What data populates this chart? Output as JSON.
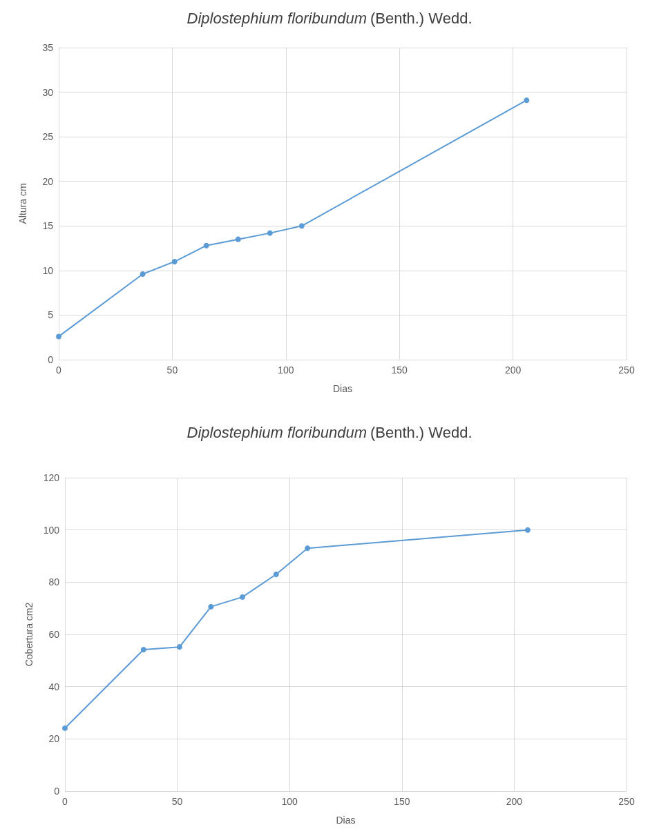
{
  "chart_data": [
    {
      "type": "line",
      "title": "Diplostephium floribundum (Benth.) Wedd.",
      "xlabel": "Dias",
      "ylabel": "Altura cm",
      "x": [
        0,
        37,
        51,
        65,
        79,
        93,
        107,
        206
      ],
      "series": [
        {
          "color": "#5b9bd5",
          "values": [
            2.6,
            9.6,
            11.0,
            12.8,
            13.5,
            14.2,
            15.0,
            29.1
          ]
        }
      ],
      "xlim": [
        0,
        250
      ],
      "xticks": [
        0,
        50,
        100,
        150,
        200,
        250
      ],
      "ylim": [
        0,
        35
      ],
      "yticks": [
        0,
        5,
        10,
        15,
        20,
        25,
        30,
        35
      ],
      "grid": true,
      "marker": "circle",
      "line_style": "solid"
    },
    {
      "type": "line",
      "title": "Diplostephium floribundum (Benth.) Wedd.",
      "xlabel": "Dias",
      "ylabel": "Cobertura cm2",
      "x": [
        0,
        35,
        51,
        65,
        79,
        94,
        108,
        206
      ],
      "series": [
        {
          "color": "#5b9bd5",
          "values": [
            24.1,
            54.2,
            55.2,
            70.6,
            74.3,
            83.0,
            93.0,
            100
          ]
        }
      ],
      "xlim": [
        0,
        250
      ],
      "xticks": [
        0,
        50,
        100,
        150,
        200,
        250
      ],
      "ylim": [
        0,
        120
      ],
      "yticks": [
        0,
        20,
        40,
        60,
        80,
        100,
        120
      ],
      "grid": true,
      "marker": "circle",
      "line_style": "solid"
    }
  ]
}
